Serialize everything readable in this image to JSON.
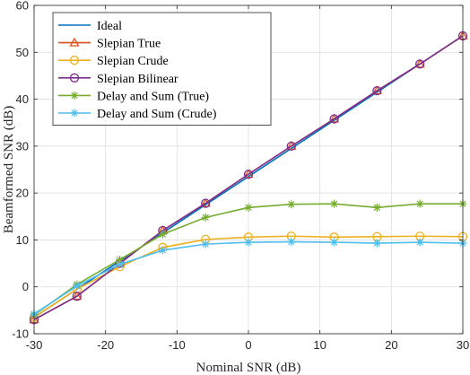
{
  "chart_data": {
    "type": "line",
    "title": "",
    "xlabel": "Nominal SNR (dB)",
    "ylabel": "Beamformed SNR (dB)",
    "xlim": [
      -30,
      30
    ],
    "ylim": [
      -10,
      60
    ],
    "xticks": [
      -30,
      -20,
      -10,
      0,
      10,
      20,
      30
    ],
    "yticks": [
      -10,
      0,
      10,
      20,
      30,
      40,
      50,
      60
    ],
    "grid": true,
    "legend_position": "top-left",
    "x": [
      -30,
      -24,
      -18,
      -12,
      -6,
      0,
      6,
      12,
      18,
      24,
      30
    ],
    "series": [
      {
        "name": "Ideal",
        "color": "#0072BD",
        "marker": "none",
        "values": [
          -6.5,
          -0.5,
          5.5,
          11.5,
          17.5,
          23.5,
          29.5,
          35.5,
          41.5,
          47.5,
          53.5
        ]
      },
      {
        "name": "Slepian True",
        "color": "#D95319",
        "marker": "triangle",
        "values": [
          -7.0,
          -2.0,
          5.0,
          12.0,
          17.8,
          24.0,
          30.0,
          35.8,
          41.8,
          47.5,
          53.5
        ]
      },
      {
        "name": "Slepian Crude",
        "color": "#EDB120",
        "marker": "circle",
        "values": [
          -6.5,
          -0.5,
          4.3,
          8.4,
          10.1,
          10.6,
          10.8,
          10.6,
          10.7,
          10.8,
          10.7
        ]
      },
      {
        "name": "Slepian Bilinear",
        "color": "#7E2F8E",
        "marker": "circle",
        "values": [
          -7.0,
          -2.0,
          5.0,
          12.0,
          17.8,
          24.0,
          30.0,
          35.8,
          41.8,
          47.5,
          53.5
        ]
      },
      {
        "name": "Delay and Sum (True)",
        "color": "#77AC30",
        "marker": "star",
        "values": [
          -6.0,
          0.5,
          5.8,
          11.2,
          14.8,
          16.9,
          17.6,
          17.7,
          16.9,
          17.7,
          17.7
        ]
      },
      {
        "name": "Delay and Sum (Crude)",
        "color": "#4DBEEE",
        "marker": "star",
        "values": [
          -5.8,
          0.2,
          4.8,
          7.8,
          9.1,
          9.5,
          9.6,
          9.5,
          9.3,
          9.5,
          9.3
        ]
      }
    ]
  }
}
